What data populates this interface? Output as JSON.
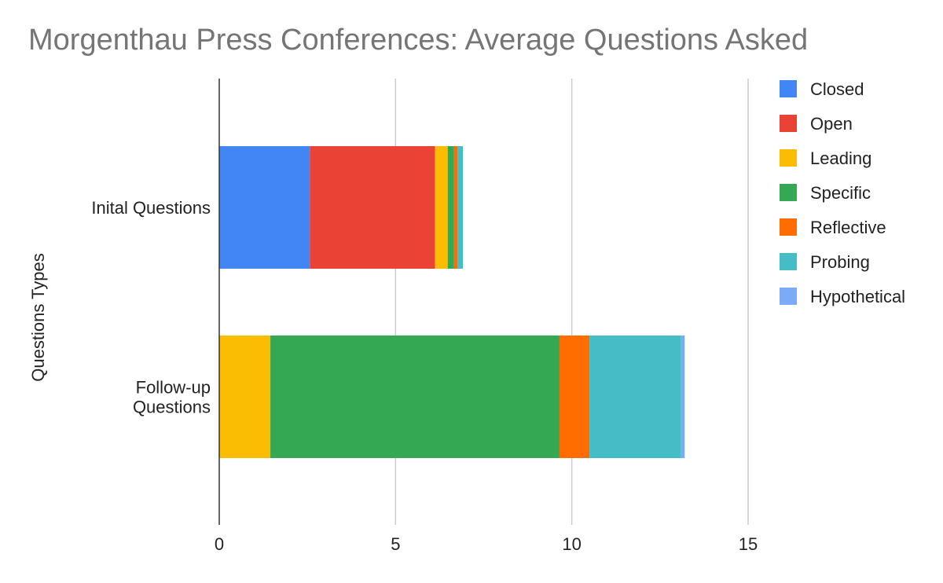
{
  "chart_data": {
    "type": "bar",
    "orientation": "horizontal",
    "stacked": true,
    "title": "Morgenthau Press Conferences: Average Questions Asked",
    "xlabel": "",
    "ylabel": "Questions Types",
    "xlim": [
      0,
      15
    ],
    "xticks": [
      0,
      5,
      10,
      15
    ],
    "grid": true,
    "legend_position": "right",
    "categories": [
      [
        "Inital Questions"
      ],
      [
        "Follow-up",
        "Questions"
      ]
    ],
    "series": [
      {
        "name": "Closed",
        "color": "#4285F4",
        "values": [
          2.57,
          0
        ]
      },
      {
        "name": "Open",
        "color": "#EA4335",
        "values": [
          3.55,
          0
        ]
      },
      {
        "name": "Leading",
        "color": "#FBBC04",
        "values": [
          0.36,
          1.45
        ]
      },
      {
        "name": "Specific",
        "color": "#34A853",
        "values": [
          0.18,
          8.2
        ]
      },
      {
        "name": "Reflective",
        "color": "#FF6D01",
        "values": [
          0.1,
          0.85
        ]
      },
      {
        "name": "Probing",
        "color": "#46BDC6",
        "values": [
          0.15,
          2.6
        ]
      },
      {
        "name": "Hypothetical",
        "color": "#7BAAF7",
        "values": [
          0,
          0.1
        ]
      }
    ]
  }
}
